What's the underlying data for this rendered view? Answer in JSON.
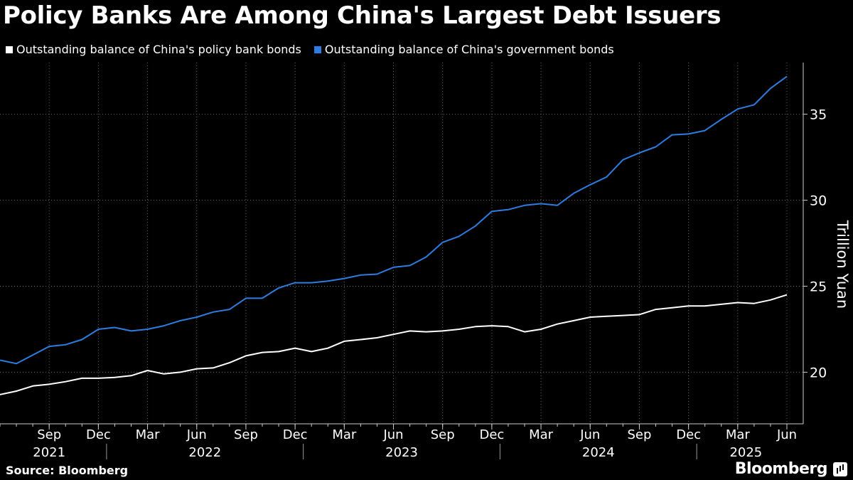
{
  "header": {
    "title": "Policy Banks Are Among China's Largest Debt Issuers"
  },
  "footer": {
    "source": "Source: Bloomberg",
    "brand": "Bloomberg"
  },
  "colors": {
    "background": "#000000",
    "policy_bank": "#ffffff",
    "government": "#2f7ce0",
    "grid": "#6a6a6a"
  },
  "chart_data": {
    "type": "line",
    "title": "Policy Banks Are Among China's Largest Debt Issuers",
    "ylabel": "Trillion Yuan",
    "ylim": [
      17,
      38
    ],
    "yticks": [
      20,
      25,
      30,
      35
    ],
    "y_axis_position": "right",
    "grid": "horizontal-dotted",
    "legend": "top-left",
    "x_tick_labels": [
      {
        "month": "2021-09",
        "label": "Sep"
      },
      {
        "month": "2021-12",
        "label": "Dec"
      },
      {
        "month": "2022-03",
        "label": "Mar"
      },
      {
        "month": "2022-06",
        "label": "Jun"
      },
      {
        "month": "2022-09",
        "label": "Sep"
      },
      {
        "month": "2022-12",
        "label": "Dec"
      },
      {
        "month": "2023-03",
        "label": "Mar"
      },
      {
        "month": "2023-06",
        "label": "Jun"
      },
      {
        "month": "2023-09",
        "label": "Sep"
      },
      {
        "month": "2023-12",
        "label": "Dec"
      },
      {
        "month": "2024-03",
        "label": "Mar"
      },
      {
        "month": "2024-06",
        "label": "Jun"
      },
      {
        "month": "2024-09",
        "label": "Sep"
      },
      {
        "month": "2024-12",
        "label": "Dec"
      },
      {
        "month": "2025-03",
        "label": "Mar"
      },
      {
        "month": "2025-06",
        "label": "Jun"
      }
    ],
    "year_labels": [
      "2021",
      "2022",
      "2023",
      "2024",
      "2025"
    ],
    "x": [
      "2021-06",
      "2021-07",
      "2021-08",
      "2021-09",
      "2021-10",
      "2021-11",
      "2021-12",
      "2022-01",
      "2022-02",
      "2022-03",
      "2022-04",
      "2022-05",
      "2022-06",
      "2022-07",
      "2022-08",
      "2022-09",
      "2022-10",
      "2022-11",
      "2022-12",
      "2023-01",
      "2023-02",
      "2023-03",
      "2023-04",
      "2023-05",
      "2023-06",
      "2023-07",
      "2023-08",
      "2023-09",
      "2023-10",
      "2023-11",
      "2023-12",
      "2024-01",
      "2024-02",
      "2024-03",
      "2024-04",
      "2024-05",
      "2024-06",
      "2024-07",
      "2024-08",
      "2024-09",
      "2024-10",
      "2024-11",
      "2024-12",
      "2025-01",
      "2025-02",
      "2025-03",
      "2025-04",
      "2025-05",
      "2025-06"
    ],
    "series": [
      {
        "name": "Outstanding balance of China's policy bank bonds",
        "color": "#ffffff",
        "values": [
          18.7,
          18.9,
          19.2,
          19.3,
          19.45,
          19.65,
          19.65,
          19.7,
          19.8,
          20.1,
          19.9,
          20.0,
          20.2,
          20.25,
          20.55,
          20.95,
          21.15,
          21.2,
          21.4,
          21.2,
          21.4,
          21.8,
          21.9,
          22.0,
          22.2,
          22.4,
          22.35,
          22.4,
          22.5,
          22.65,
          22.7,
          22.65,
          22.35,
          22.5,
          22.8,
          23.0,
          23.2,
          23.25,
          23.3,
          23.35,
          23.65,
          23.75,
          23.85,
          23.85,
          23.95,
          24.05,
          24.0,
          24.2,
          24.5
        ]
      },
      {
        "name": "Outstanding balance of China's government bonds",
        "color": "#2f7ce0",
        "values": [
          20.7,
          20.5,
          21.0,
          21.5,
          21.6,
          21.9,
          22.5,
          22.6,
          22.4,
          22.5,
          22.7,
          23.0,
          23.2,
          23.5,
          23.65,
          24.3,
          24.3,
          24.9,
          25.2,
          25.2,
          25.3,
          25.45,
          25.65,
          25.7,
          26.1,
          26.2,
          26.7,
          27.55,
          27.9,
          28.5,
          29.35,
          29.45,
          29.7,
          29.8,
          29.7,
          30.4,
          30.9,
          31.35,
          32.35,
          32.75,
          33.1,
          33.8,
          33.85,
          34.05,
          34.7,
          35.3,
          35.55,
          36.5,
          37.2
        ]
      }
    ]
  }
}
